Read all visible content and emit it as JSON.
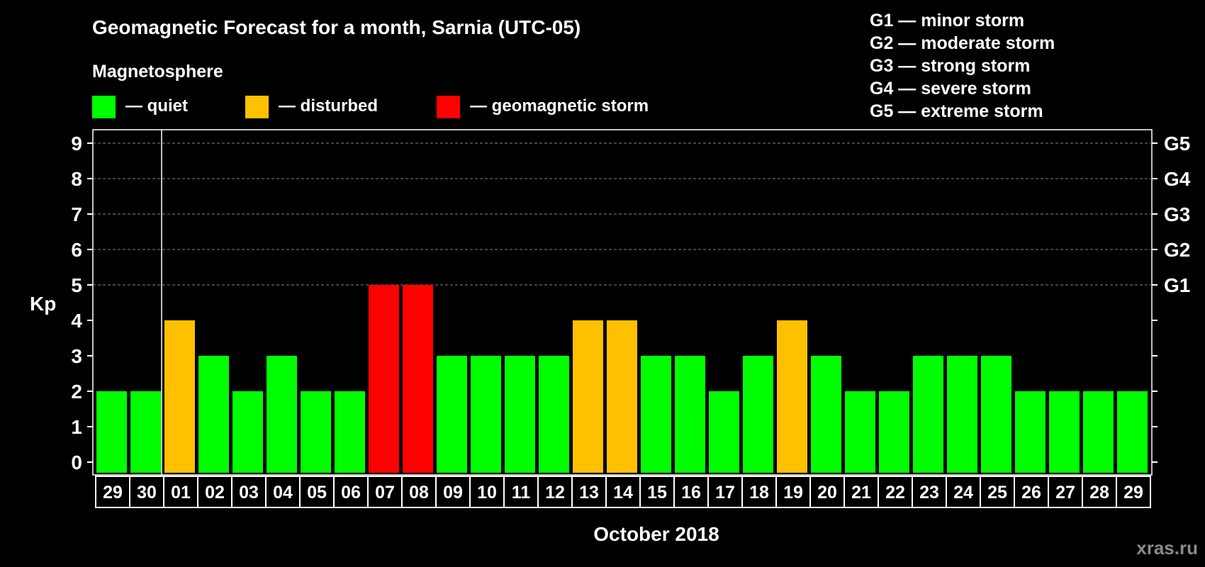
{
  "title": "Geomagnetic Forecast for a month, Sarnia (UTC-05)",
  "legend": {
    "heading": "Magnetosphere",
    "items": [
      {
        "label": "— quiet",
        "color": "#00ff00"
      },
      {
        "label": "— disturbed",
        "color": "#ffc000"
      },
      {
        "label": "— geomagnetic storm",
        "color": "#ff0000"
      }
    ]
  },
  "storm_scale": [
    "G1 — minor storm",
    "G2 — moderate storm",
    "G3 — strong storm",
    "G4 — severe storm",
    "G5 — extreme storm"
  ],
  "watermark": "xras.ru",
  "chart_data": {
    "type": "bar",
    "ylabel": "Kp",
    "xlabel": "October 2018",
    "ylim": [
      0,
      9
    ],
    "yticks": [
      0,
      1,
      2,
      3,
      4,
      5,
      6,
      7,
      8,
      9
    ],
    "right_axis_labels": [
      {
        "value": 5,
        "label": "G1"
      },
      {
        "value": 6,
        "label": "G2"
      },
      {
        "value": 7,
        "label": "G3"
      },
      {
        "value": 8,
        "label": "G4"
      },
      {
        "value": 9,
        "label": "G5"
      }
    ],
    "grid": "dashed at 5-9",
    "month_divider_after_index": 1,
    "categories": [
      "29",
      "30",
      "01",
      "02",
      "03",
      "04",
      "05",
      "06",
      "07",
      "08",
      "09",
      "10",
      "11",
      "12",
      "13",
      "14",
      "15",
      "16",
      "17",
      "18",
      "19",
      "20",
      "21",
      "22",
      "23",
      "24",
      "25",
      "26",
      "27",
      "28",
      "29"
    ],
    "values": [
      2,
      2,
      4,
      3,
      2,
      3,
      2,
      2,
      5,
      5,
      3,
      3,
      3,
      3,
      4,
      4,
      3,
      3,
      2,
      3,
      4,
      3,
      2,
      2,
      3,
      3,
      3,
      2,
      2,
      2,
      2
    ],
    "levels": [
      "quiet",
      "quiet",
      "disturbed",
      "quiet",
      "quiet",
      "quiet",
      "quiet",
      "quiet",
      "storm",
      "storm",
      "quiet",
      "quiet",
      "quiet",
      "quiet",
      "disturbed",
      "disturbed",
      "quiet",
      "quiet",
      "quiet",
      "quiet",
      "disturbed",
      "quiet",
      "quiet",
      "quiet",
      "quiet",
      "quiet",
      "quiet",
      "quiet",
      "quiet",
      "quiet",
      "quiet"
    ],
    "level_colors": {
      "quiet": "#00ff00",
      "disturbed": "#ffc000",
      "storm": "#ff0000"
    }
  }
}
